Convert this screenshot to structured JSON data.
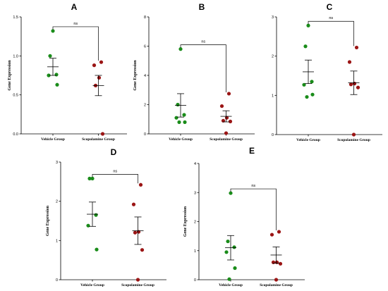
{
  "colors": {
    "vehicle": "#1a8c1a",
    "scopolamine": "#9b1515",
    "axis": "#000000"
  },
  "chart_data": [
    {
      "type": "scatter",
      "panel": "A",
      "ylabel": "Gene Expression",
      "categories": [
        "Vehicle Group",
        "Scopolamine Group"
      ],
      "ylim": [
        0,
        1.5
      ],
      "yticks": [
        0.0,
        0.5,
        1.0,
        1.5
      ],
      "ytick_labels": [
        "0.0",
        "0.5",
        "1.0",
        "1.5"
      ],
      "significance": "ns",
      "series": [
        {
          "values": [
            1.32,
            1.0,
            0.76,
            0.75,
            0.63
          ],
          "mean": 0.86,
          "sem": 0.11
        },
        {
          "values": [
            0.92,
            0.88,
            0.72,
            0.62,
            0.0
          ],
          "mean": 0.62,
          "sem": 0.13
        }
      ]
    },
    {
      "type": "scatter",
      "panel": "B",
      "ylabel": "Gene Expression",
      "categories": [
        "Vehicle Group",
        "Scopolamine Group"
      ],
      "ylim": [
        0,
        8
      ],
      "yticks": [
        0,
        2,
        4,
        6,
        8
      ],
      "ytick_labels": [
        "0",
        "2",
        "4",
        "6",
        "8"
      ],
      "significance": "ns",
      "series": [
        {
          "values": [
            5.8,
            2.0,
            1.3,
            1.1,
            0.8,
            0.8
          ],
          "mean": 1.95,
          "sem": 0.8
        },
        {
          "values": [
            2.75,
            1.9,
            1.1,
            0.9,
            0.85,
            0.05
          ],
          "mean": 1.2,
          "sem": 0.38
        }
      ]
    },
    {
      "type": "scatter",
      "panel": "C",
      "ylabel": "",
      "categories": [
        "Vehicle Group",
        "Scopolamine Group"
      ],
      "ylim": [
        0,
        3
      ],
      "yticks": [
        0,
        1,
        2,
        3
      ],
      "ytick_labels": [
        "0",
        "1",
        "2",
        "3"
      ],
      "significance": "ns",
      "series": [
        {
          "values": [
            2.78,
            2.25,
            1.35,
            1.27,
            1.02,
            0.96
          ],
          "mean": 1.6,
          "sem": 0.3
        },
        {
          "values": [
            2.22,
            1.85,
            1.3,
            1.28,
            1.2,
            0.0
          ],
          "mean": 1.32,
          "sem": 0.3
        }
      ]
    },
    {
      "type": "scatter",
      "panel": "D",
      "ylabel": "Gene Expression",
      "categories": [
        "Vehicle Group",
        "Scopolamine Group"
      ],
      "ylim": [
        0,
        3
      ],
      "yticks": [
        0,
        1,
        2,
        3
      ],
      "ytick_labels": [
        "0",
        "1",
        "2",
        "3"
      ],
      "significance": "ns",
      "series": [
        {
          "values": [
            2.58,
            2.58,
            1.65,
            1.38,
            0.77
          ],
          "mean": 1.67,
          "sem": 0.31
        },
        {
          "values": [
            2.42,
            1.92,
            1.22,
            1.2,
            0.76,
            0.0
          ],
          "mean": 1.25,
          "sem": 0.35
        }
      ]
    },
    {
      "type": "scatter",
      "panel": "E",
      "ylabel": "Gene Expression",
      "categories": [
        "Vehicle Group",
        "Scopolamine Group"
      ],
      "ylim": [
        0,
        4
      ],
      "yticks": [
        0,
        1,
        2,
        3,
        4
      ],
      "ytick_labels": [
        "0",
        "1",
        "2",
        "3",
        "4"
      ],
      "significance": "ns",
      "series": [
        {
          "values": [
            2.98,
            1.32,
            1.12,
            0.95,
            0.4,
            0.02
          ],
          "mean": 1.1,
          "sem": 0.42
        },
        {
          "values": [
            1.65,
            1.55,
            0.6,
            0.6,
            0.55,
            0.0
          ],
          "mean": 0.85,
          "sem": 0.28
        }
      ]
    }
  ]
}
